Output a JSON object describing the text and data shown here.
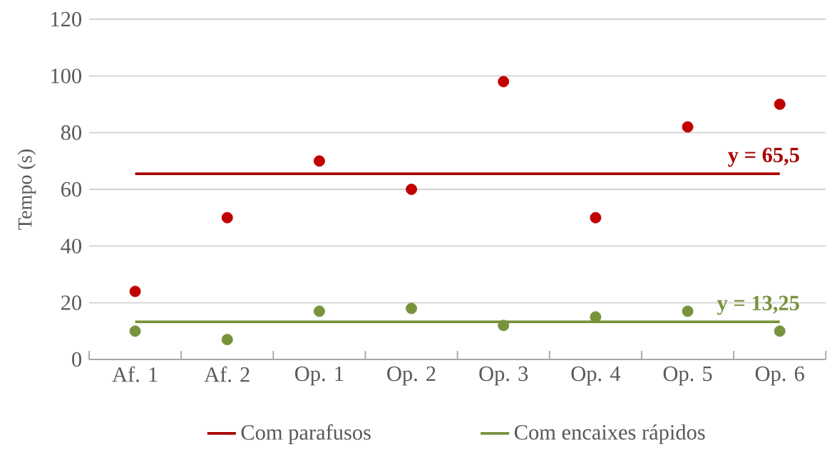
{
  "chart_data": {
    "type": "line",
    "ylabel": "Tempo (s)",
    "categories": [
      "Af. 1",
      "Af. 2",
      "Op. 1",
      "Op. 2",
      "Op. 3",
      "Op. 4",
      "Op. 5",
      "Op. 6"
    ],
    "series": [
      {
        "type": "scatter",
        "marker": "circle",
        "color": "#c00000",
        "values": [
          24,
          50,
          70,
          60,
          98,
          50,
          82,
          90
        ]
      },
      {
        "type": "scatter",
        "marker": "circle",
        "color": "#77933c",
        "values": [
          10,
          7,
          17,
          18,
          12,
          15,
          17,
          10
        ]
      },
      {
        "marker": "none",
        "name": "Com parafusos",
        "color": "#a80000",
        "values": [
          65.5,
          65.5,
          65.5,
          65.5,
          65.5,
          65.5,
          65.5,
          65.5
        ]
      },
      {
        "marker": "none",
        "name": "Com encaixes rápidos",
        "color": "#77933c",
        "values": [
          13.25,
          13.25,
          13.25,
          13.25,
          13.25,
          13.25,
          13.25,
          13.25
        ]
      }
    ],
    "annotations": [
      {
        "text": "y = 65,5",
        "x": "Op. 6",
        "y": 65.5
      },
      {
        "text": "y = 13,25",
        "x": "Op. 6",
        "y": 13.25
      }
    ],
    "ylim": [
      0,
      120
    ],
    "yticks": [
      0,
      20,
      40,
      60,
      80,
      100,
      120
    ],
    "grid": "y",
    "legend": "bottom"
  }
}
